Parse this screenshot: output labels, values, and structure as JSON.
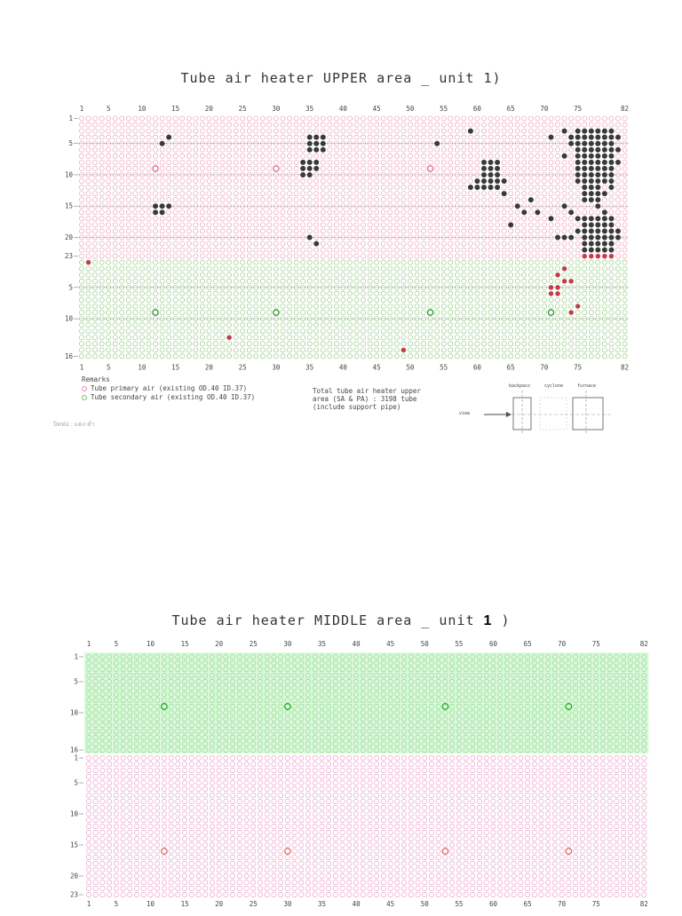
{
  "upper": {
    "title": "Tube air heater UPPER area _ unit 1)",
    "col_labels": [
      "1",
      "5",
      "10",
      "15",
      "20",
      "25",
      "30",
      "35",
      "40",
      "45",
      "50",
      "55",
      "60",
      "65",
      "70",
      "75",
      "82"
    ],
    "row_labels_primary": [
      "1",
      "5",
      "10",
      "15",
      "20",
      "23"
    ],
    "row_labels_secondary": [
      "1",
      "5",
      "10",
      "16"
    ],
    "remarks": {
      "heading": "Remarks",
      "primary": "Tube primary air (existing OD.40 ID.37)",
      "secondary": "Tube secondary air (existing OD.40 ID.37)"
    },
    "total_note": "Total tube air heater upper\narea (SA & PA) : 3198 tube\n(include support pipe)",
    "scribble": "ปิดท่อ : แดง ดำ",
    "view_diagram": {
      "backpass": "backpass",
      "cyclone": "cyclone",
      "furnace": "furnace",
      "view": "view"
    },
    "colors": {
      "primary_air": "#e88ab0",
      "secondary_air": "#7cbf6a",
      "plugged": "#3a3a3a",
      "plugged_red": "#c83a4a"
    }
  },
  "middle": {
    "title_main": "Tube air heater MIDDLE area _ unit ",
    "title_num": "1",
    "title_end": " )",
    "col_labels": [
      "1",
      "5",
      "10",
      "15",
      "20",
      "25",
      "30",
      "35",
      "40",
      "45",
      "50",
      "55",
      "60",
      "65",
      "70",
      "75",
      "82"
    ],
    "row_labels_secondary": [
      "1",
      "5",
      "10",
      "16"
    ],
    "row_labels_primary": [
      "1",
      "5",
      "10",
      "15",
      "20",
      "23"
    ],
    "colors": {
      "secondary_air": "#7ad67a",
      "secondary_bg": "#dcf7dc",
      "primary_air": "#e68ac0",
      "marker_green": "#2fae2f",
      "marker_red": "#e36a6a"
    }
  }
}
